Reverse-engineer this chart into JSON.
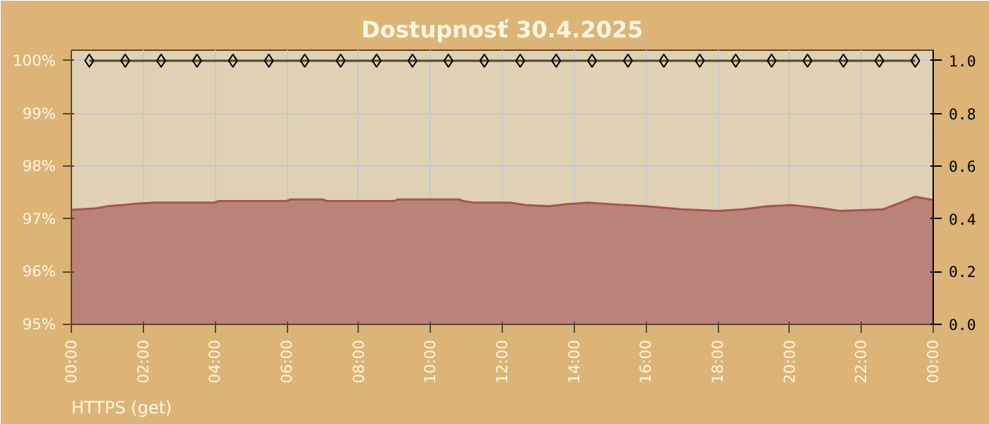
{
  "chart_data": {
    "type": "area",
    "title": "Dostupnosť 30.4.2025",
    "annotations": [
      "HTTPS (get)"
    ],
    "xlim": [
      0,
      24
    ],
    "xticks": [
      {
        "value": 0,
        "label": "00:00"
      },
      {
        "value": 2,
        "label": "02:00"
      },
      {
        "value": 4,
        "label": "04:00"
      },
      {
        "value": 6,
        "label": "06:00"
      },
      {
        "value": 8,
        "label": "08:00"
      },
      {
        "value": 10,
        "label": "10:00"
      },
      {
        "value": 12,
        "label": "12:00"
      },
      {
        "value": 14,
        "label": "14:00"
      },
      {
        "value": 16,
        "label": "16:00"
      },
      {
        "value": 18,
        "label": "18:00"
      },
      {
        "value": 20,
        "label": "20:00"
      },
      {
        "value": 22,
        "label": "22:00"
      },
      {
        "value": 24,
        "label": "00:00"
      }
    ],
    "ylim": [
      95,
      100.2
    ],
    "yticks": [
      {
        "value": 95,
        "label": "95%"
      },
      {
        "value": 96,
        "label": "96%"
      },
      {
        "value": 97,
        "label": "97%"
      },
      {
        "value": 98,
        "label": "98%"
      },
      {
        "value": 99,
        "label": "99%"
      },
      {
        "value": 100,
        "label": "100%"
      }
    ],
    "y2lim": [
      0,
      1.04
    ],
    "y2ticks": [
      {
        "value": 0,
        "label": "0.0"
      },
      {
        "value": 0.2,
        "label": "0.2"
      },
      {
        "value": 0.4,
        "label": "0.4"
      },
      {
        "value": 0.6,
        "label": "0.6"
      },
      {
        "value": 0.8,
        "label": "0.8"
      },
      {
        "value": 1,
        "label": "1.0"
      }
    ],
    "grid": true,
    "series": [
      {
        "color": "#b9837a",
        "x": [
          0,
          0.7,
          1.0,
          1.4,
          1.8,
          2.3,
          4.0,
          4.1,
          6.0,
          6.1,
          7.0,
          7.1,
          9.0,
          9.1,
          10.8,
          10.9,
          11.2,
          12.2,
          12.7,
          13.3,
          13.8,
          14.4,
          15.0,
          16.0,
          17.0,
          18.0,
          18.7,
          19.4,
          20.1,
          20.9,
          21.4,
          22.6,
          23.1,
          23.5,
          24.0
        ],
        "values": [
          97.17,
          97.2,
          97.24,
          97.26,
          97.29,
          97.31,
          97.31,
          97.34,
          97.34,
          97.37,
          97.37,
          97.34,
          97.34,
          97.37,
          97.37,
          97.34,
          97.31,
          97.31,
          97.26,
          97.24,
          97.28,
          97.31,
          97.28,
          97.24,
          97.18,
          97.15,
          97.18,
          97.24,
          97.26,
          97.2,
          97.15,
          97.18,
          97.31,
          97.42,
          97.36
        ]
      },
      {
        "type": "line",
        "axis": "y2",
        "marker": "diamond",
        "color": "#4a4a2a",
        "x": [
          0.5,
          1.5,
          2.5,
          3.5,
          4.5,
          5.5,
          6.5,
          7.5,
          8.5,
          9.5,
          10.5,
          11.5,
          12.5,
          13.5,
          14.5,
          15.5,
          16.5,
          17.5,
          18.5,
          19.5,
          20.5,
          21.5,
          22.5,
          23.5
        ],
        "values": [
          1,
          1,
          1,
          1,
          1,
          1,
          1,
          1,
          1,
          1,
          1,
          1,
          1,
          1,
          1,
          1,
          1,
          1,
          1,
          1,
          1,
          1,
          1,
          1
        ]
      }
    ]
  }
}
